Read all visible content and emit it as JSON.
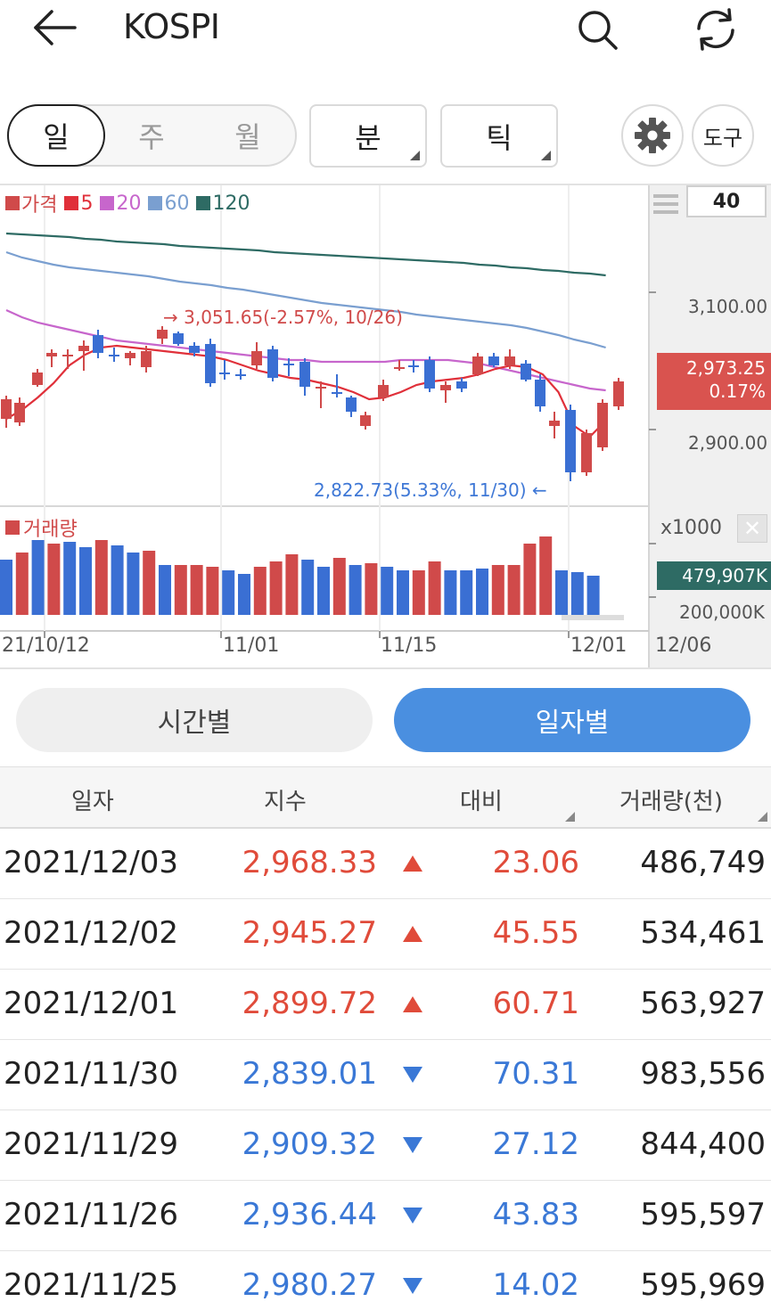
{
  "header": {
    "title": "KOSPI"
  },
  "period": {
    "day": "일",
    "week": "주",
    "month": "월",
    "minute": "분",
    "tick": "틱",
    "tools": "도구"
  },
  "chart": {
    "legend": [
      {
        "label": "가격",
        "color": "#d04a4a"
      },
      {
        "label": "5",
        "color": "#e0303a"
      },
      {
        "label": "20",
        "color": "#c766cc"
      },
      {
        "label": "60",
        "color": "#7a9fd0"
      },
      {
        "label": "120",
        "color": "#2e6b64"
      }
    ],
    "zoom": "40",
    "price_axis": [
      "3,100.00",
      "2,900.00"
    ],
    "current_price": "2,973.25",
    "current_change": "0.17%",
    "high_annotation": "→ 3,051.65(-2.57%, 10/26)",
    "low_annotation": "2,822.73(5.33%, 11/30) ←",
    "volume_legend": "거래량",
    "volume_unit": "x1000",
    "current_volume": "479,907K",
    "volume_axis": "200,000K",
    "date_axis": [
      "21/10/12",
      "11/01",
      "11/15",
      "12/01",
      "12/06"
    ],
    "colors": {
      "up": "#d04a4a",
      "down": "#3a6fd3",
      "ma5": "#e0303a",
      "ma20": "#c766cc",
      "ma60": "#7a9fd0",
      "ma120": "#2e6b64"
    }
  },
  "tabs": {
    "time": "시간별",
    "daily": "일자별"
  },
  "table": {
    "headers": {
      "date": "일자",
      "index": "지수",
      "change": "대비",
      "volume": "거래량(천)"
    },
    "rows": [
      {
        "date": "2021/12/03",
        "index": "2,968.33",
        "change": "23.06",
        "volume": "486,749",
        "dir": "up"
      },
      {
        "date": "2021/12/02",
        "index": "2,945.27",
        "change": "45.55",
        "volume": "534,461",
        "dir": "up"
      },
      {
        "date": "2021/12/01",
        "index": "2,899.72",
        "change": "60.71",
        "volume": "563,927",
        "dir": "up"
      },
      {
        "date": "2021/11/30",
        "index": "2,839.01",
        "change": "70.31",
        "volume": "983,556",
        "dir": "down"
      },
      {
        "date": "2021/11/29",
        "index": "2,909.32",
        "change": "27.12",
        "volume": "844,400",
        "dir": "down"
      },
      {
        "date": "2021/11/26",
        "index": "2,936.44",
        "change": "43.83",
        "volume": "595,597",
        "dir": "down"
      },
      {
        "date": "2021/11/25",
        "index": "2,980.27",
        "change": "14.02",
        "volume": "595,969",
        "dir": "down"
      }
    ]
  }
}
